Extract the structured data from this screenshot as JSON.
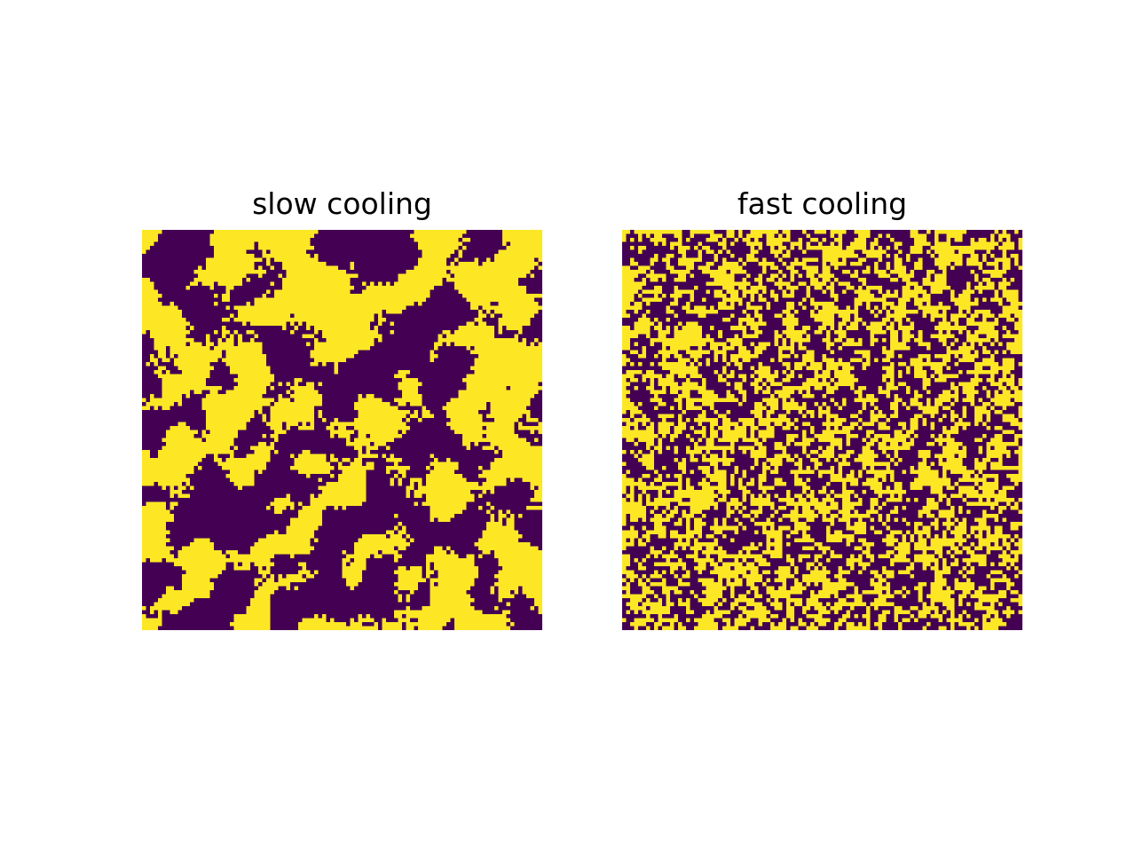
{
  "chart_data": [
    {
      "type": "heatmap",
      "title": "slow cooling",
      "grid": false,
      "axes": "off",
      "rows": 100,
      "cols": 100,
      "values": [
        0,
        1
      ],
      "colormap": {
        "0": "#440154",
        "1": "#fde725"
      },
      "texture": "coarse"
    },
    {
      "type": "heatmap",
      "title": "fast cooling",
      "grid": false,
      "axes": "off",
      "rows": 100,
      "cols": 100,
      "values": [
        0,
        1
      ],
      "colormap": {
        "0": "#440154",
        "1": "#fde725"
      },
      "texture": "fine"
    }
  ]
}
